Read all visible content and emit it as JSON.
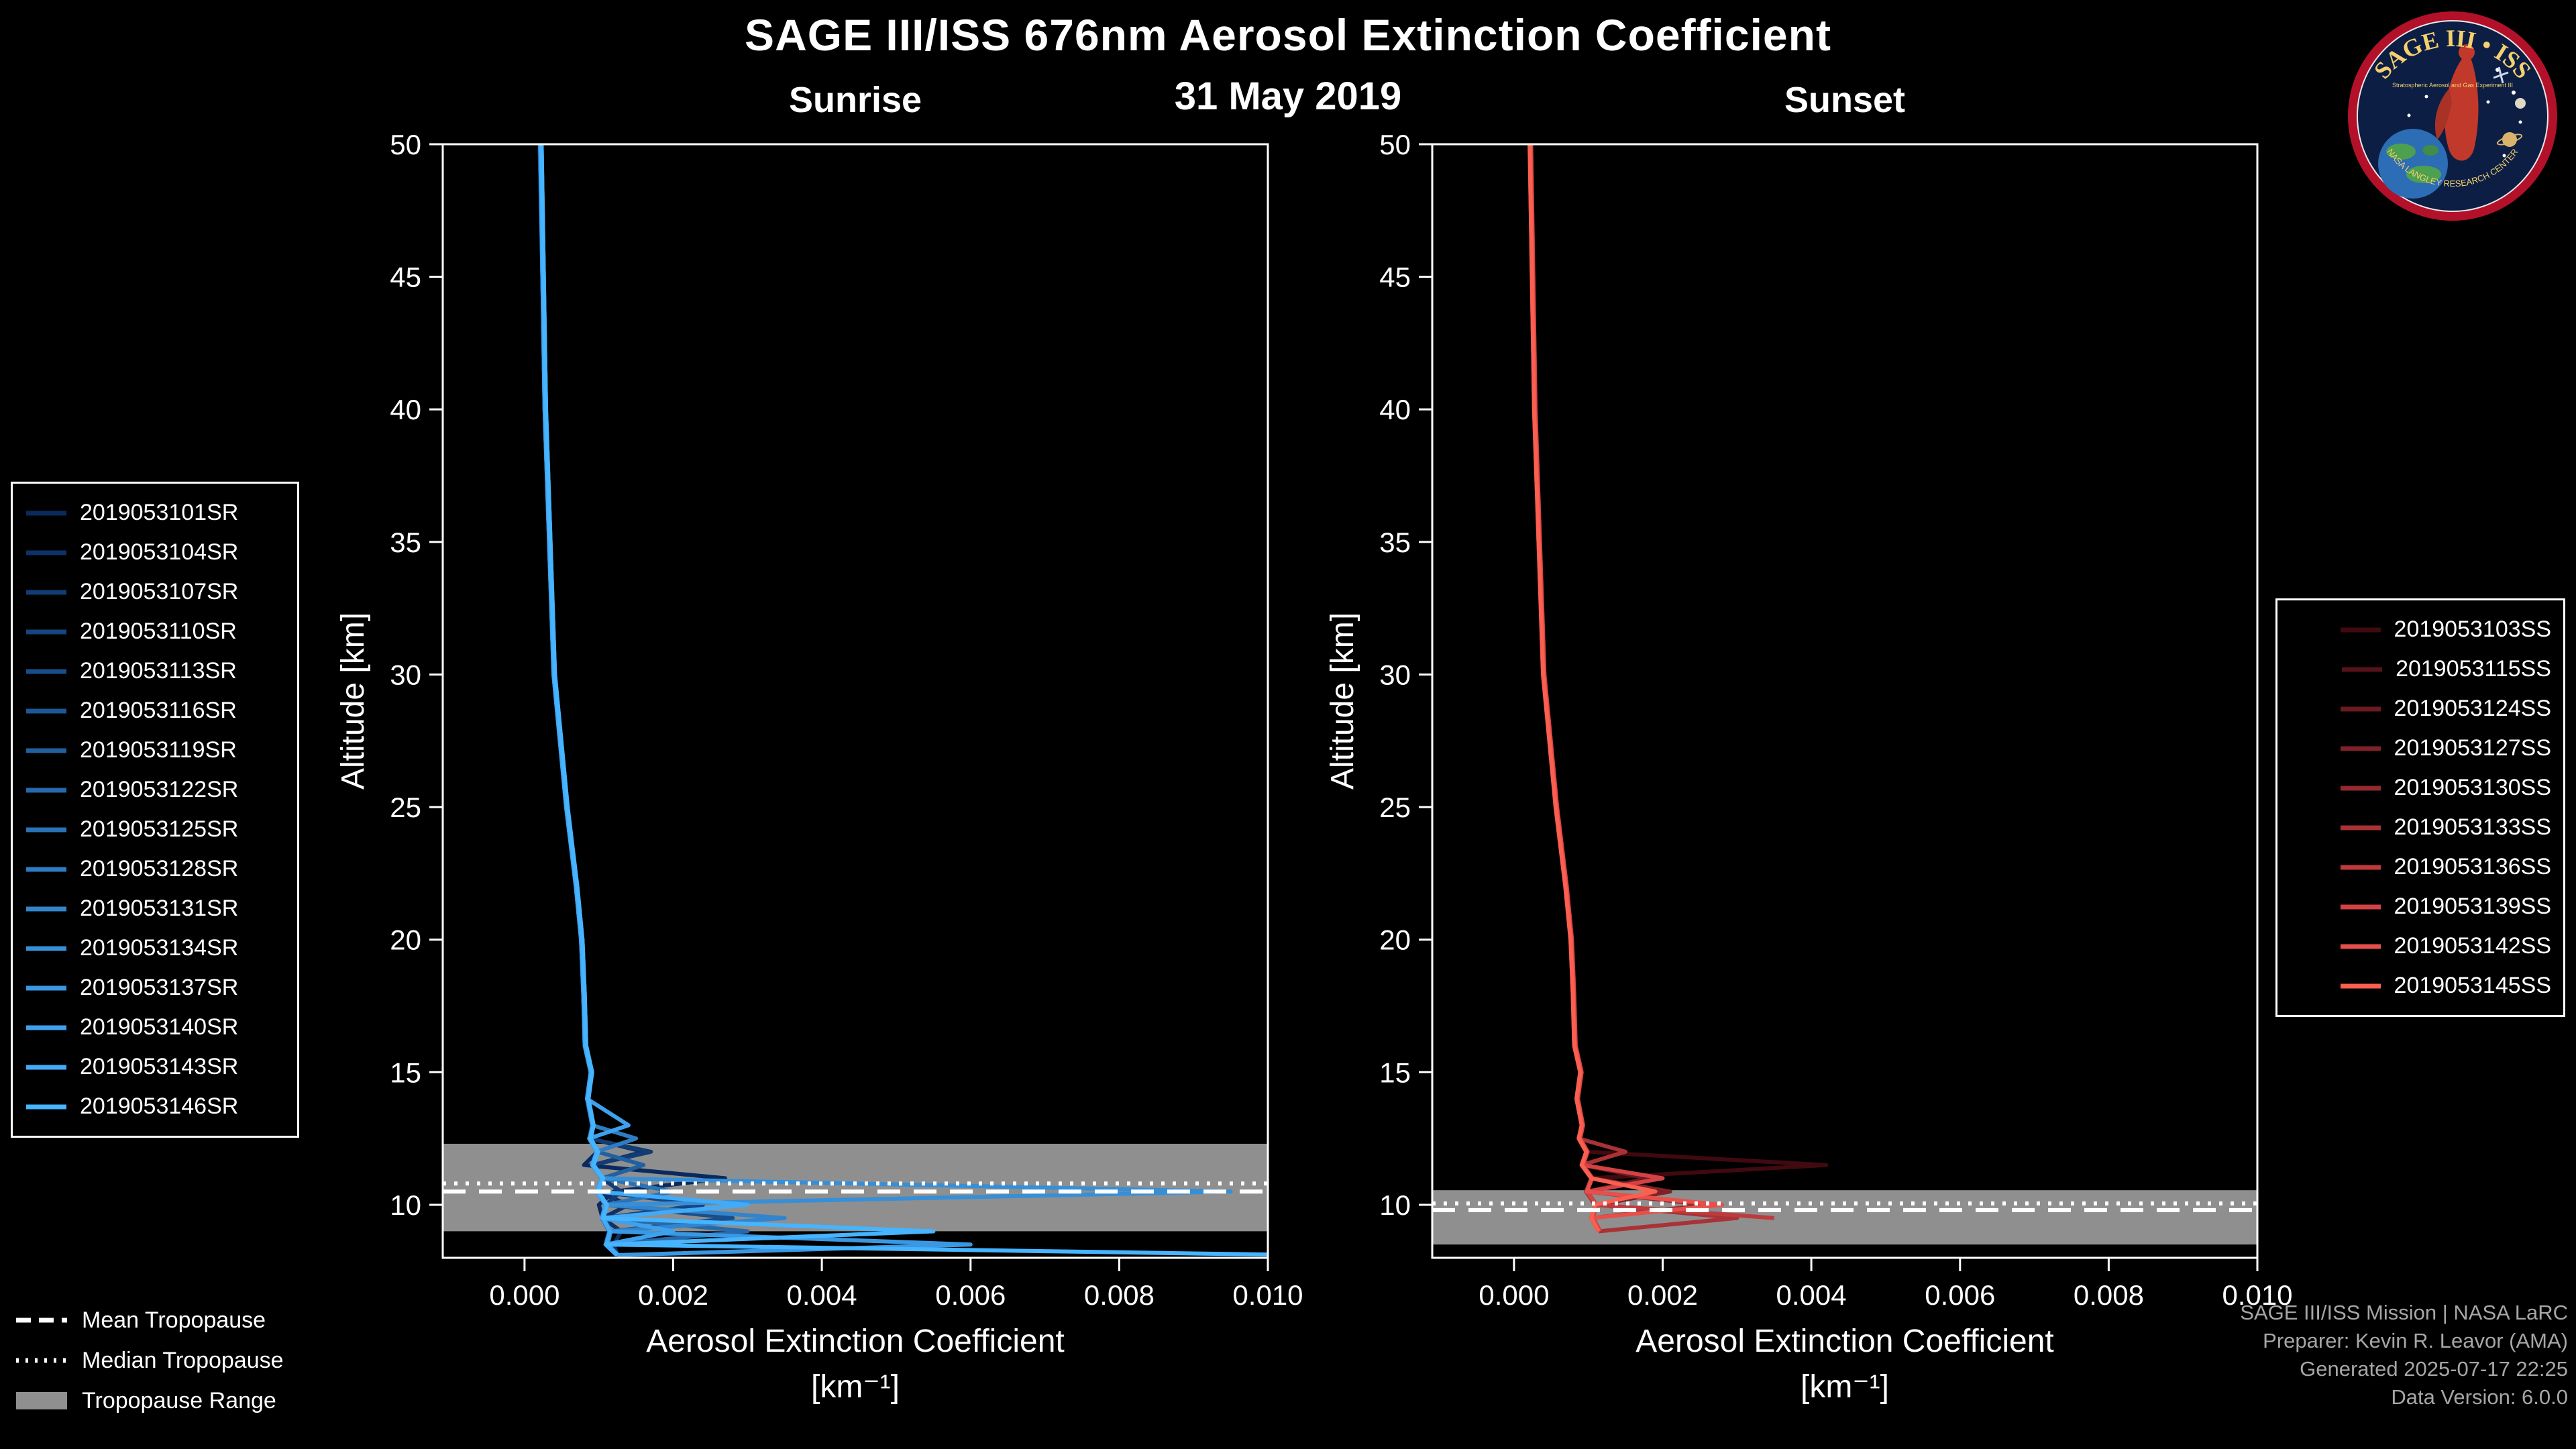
{
  "header": {
    "title": "SAGE III/ISS 676nm Aerosol Extinction Coefficient",
    "date": "31 May 2019"
  },
  "logo": {
    "top_text": "SAGE III • ISS",
    "sub_text": "Stratospheric Aerosol and Gas Experiment III",
    "bottom_text": "NASA LANGLEY RESEARCH CENTER"
  },
  "tropopause_legend": {
    "mean": "Mean Tropopause",
    "median": "Median Tropopause",
    "range": "Tropopause Range"
  },
  "credits": {
    "line1": "SAGE III/ISS Mission | NASA LaRC",
    "line2": "Preparer: Kevin R. Leavor (AMA)",
    "line3": "Generated 2025-07-17 22:25",
    "line4": "Data Version: 6.0.0"
  },
  "colors": {
    "band": "#8f8f8f",
    "tropopause_line": "#ffffff",
    "frame": "#ffffff"
  },
  "chart_data": [
    {
      "type": "line",
      "panel": "sunrise",
      "title": "Sunrise",
      "xlabel": "Aerosol Extinction Coefficient",
      "xlabel_units": "[km⁻¹]",
      "ylabel": "Altitude [km]",
      "xlim": [
        -0.0011,
        0.01
      ],
      "xticks": [
        0.0,
        0.002,
        0.004,
        0.006,
        0.008,
        0.01
      ],
      "ylim": [
        8,
        50
      ],
      "yticks": [
        10,
        15,
        20,
        25,
        30,
        35,
        40,
        45,
        50
      ],
      "legend_position": "outside-left",
      "grid": false,
      "tropopause": {
        "mean": 10.5,
        "median": 10.8,
        "range": [
          9.0,
          12.3
        ]
      },
      "altitudes": [
        50,
        40,
        30,
        25,
        22,
        20,
        18,
        16,
        15,
        14,
        13,
        12.5,
        12,
        11.5,
        11,
        10.5,
        10,
        9.5,
        9,
        8.5,
        8.1
      ],
      "series": [
        {
          "name": "2019053101SR",
          "color": "#0a2a5e",
          "values": [
            0.0002,
            0.00028,
            0.0004,
            0.00057,
            0.0007,
            0.00077,
            0.0008,
            0.00082,
            0.0009,
            0.00085,
            0.00092,
            0.00088,
            0.00098,
            0.0008,
            0.0027,
            0.0012,
            0.001,
            0.00105,
            0.00115,
            0.0011,
            0.00125
          ]
        },
        {
          "name": "2019053104SR",
          "color": "#0e3369",
          "values": [
            0.00022,
            0.00028,
            0.0004,
            0.00057,
            0.0007,
            0.00077,
            0.0008,
            0.00082,
            0.0009,
            0.00085,
            0.00092,
            0.00088,
            0.0016,
            0.00092,
            0.00105,
            0.00098,
            0.0014,
            0.00105,
            0.0013,
            0.0012,
            0.00125
          ]
        },
        {
          "name": "2019053107SR",
          "color": "#123c74",
          "values": [
            0.00021,
            0.00027,
            0.00039,
            0.00056,
            0.00069,
            0.00076,
            0.00079,
            0.00081,
            0.00089,
            0.00084,
            0.00091,
            0.00087,
            0.0017,
            0.00091,
            0.00104,
            0.0013,
            0.00109,
            0.00104,
            0.00114,
            0.00109,
            0.00124
          ]
        },
        {
          "name": "2019053110SR",
          "color": "#16457f",
          "values": [
            0.00023,
            0.00029,
            0.00041,
            0.00058,
            0.00071,
            0.00078,
            0.00081,
            0.00083,
            0.00091,
            0.00086,
            0.00093,
            0.00089,
            0.00099,
            0.00093,
            0.00106,
            0.00099,
            0.0024,
            0.00106,
            0.00116,
            0.00112,
            0.00126
          ]
        },
        {
          "name": "2019053113SR",
          "color": "#1a4e8a",
          "values": [
            0.00022,
            0.00028,
            0.0004,
            0.00057,
            0.0007,
            0.00077,
            0.0008,
            0.00082,
            0.0009,
            0.00085,
            0.00092,
            0.00088,
            0.00098,
            0.00092,
            0.00105,
            0.00098,
            0.0011,
            0.0028,
            0.00115,
            0.0011,
            0.00125
          ]
        },
        {
          "name": "2019053116SR",
          "color": "#1e5795",
          "values": [
            0.00021,
            0.00027,
            0.00039,
            0.00056,
            0.00069,
            0.00076,
            0.00079,
            0.00081,
            0.00089,
            0.00084,
            0.00091,
            0.00087,
            0.00097,
            0.00091,
            0.00104,
            0.00097,
            0.00109,
            0.00104,
            0.00114,
            0.00109,
            0.00124
          ]
        },
        {
          "name": "2019053119SR",
          "color": "#2261a0",
          "values": [
            0.00022,
            0.00028,
            0.0004,
            0.00057,
            0.0007,
            0.00077,
            0.0008,
            0.00082,
            0.0009,
            0.00085,
            0.00092,
            0.00088,
            0.00098,
            0.0016,
            0.00105,
            0.00098,
            0.0011,
            0.00105,
            0.00115,
            0.0011,
            0.00125
          ]
        },
        {
          "name": "2019053122SR",
          "color": "#266aab",
          "values": [
            0.00023,
            0.00029,
            0.00041,
            0.00058,
            0.00071,
            0.00078,
            0.00081,
            0.00083,
            0.00091,
            0.00086,
            0.00093,
            0.00089,
            0.00099,
            0.00093,
            0.00106,
            0.00099,
            0.00111,
            0.00106,
            0.003,
            0.00112,
            0.00126
          ]
        },
        {
          "name": "2019053125SR",
          "color": "#2a73b6",
          "values": [
            0.00022,
            0.00028,
            0.0004,
            0.00057,
            0.0007,
            0.00077,
            0.0008,
            0.00082,
            0.0009,
            0.00085,
            0.00092,
            0.00088,
            0.00098,
            0.00092,
            0.00105,
            0.002,
            0.0011,
            0.00105,
            0.00115,
            0.0011,
            0.00125
          ]
        },
        {
          "name": "2019053128SR",
          "color": "#2e7cc1",
          "values": [
            0.00021,
            0.00027,
            0.00039,
            0.00056,
            0.00069,
            0.00076,
            0.00079,
            0.00081,
            0.00089,
            0.00084,
            0.00091,
            0.0015,
            0.00097,
            0.00091,
            0.00104,
            0.00097,
            0.00109,
            0.00104,
            0.00114,
            0.00109,
            0.00124
          ]
        },
        {
          "name": "2019053131SR",
          "color": "#3285cc",
          "values": [
            0.00022,
            0.00028,
            0.0004,
            0.00057,
            0.0007,
            0.00077,
            0.0008,
            0.00082,
            0.0009,
            0.00085,
            0.00092,
            0.00088,
            0.00098,
            0.00092,
            0.00105,
            0.00098,
            0.0011,
            0.0035,
            0.00115,
            0.0011,
            0.00125
          ]
        },
        {
          "name": "2019053134SR",
          "color": "#368fd7",
          "values": [
            0.00023,
            0.00029,
            0.00041,
            0.00058,
            0.00071,
            0.00078,
            0.00081,
            0.00083,
            0.00091,
            0.00086,
            0.00093,
            0.00089,
            0.00099,
            0.00093,
            0.00106,
            0.0095,
            0.00111,
            0.00106,
            0.00116,
            0.00112,
            0.00126
          ]
        },
        {
          "name": "2019053137SR",
          "color": "#3a98e2",
          "values": [
            0.00022,
            0.00028,
            0.0004,
            0.00057,
            0.0007,
            0.00077,
            0.0008,
            0.00082,
            0.0009,
            0.00085,
            0.00092,
            0.00088,
            0.00098,
            0.00092,
            0.00105,
            0.00098,
            0.0011,
            0.00105,
            0.00115,
            0.006,
            0.00125
          ]
        },
        {
          "name": "2019053140SR",
          "color": "#3ea1ed",
          "values": [
            0.00021,
            0.00027,
            0.00039,
            0.00056,
            0.00069,
            0.00076,
            0.00079,
            0.00081,
            0.00089,
            0.00084,
            0.0014,
            0.00087,
            0.00097,
            0.00091,
            0.00104,
            0.00097,
            0.00109,
            0.00104,
            0.002,
            0.00109,
            0.00124
          ]
        },
        {
          "name": "2019053143SR",
          "color": "#42abf8",
          "values": [
            0.00022,
            0.00028,
            0.0004,
            0.00057,
            0.0007,
            0.00077,
            0.0008,
            0.00082,
            0.0009,
            0.00085,
            0.00092,
            0.00088,
            0.00098,
            0.00092,
            0.00105,
            0.00098,
            0.003,
            0.00105,
            0.00115,
            0.0011,
            0.00125
          ]
        },
        {
          "name": "2019053146SR",
          "color": "#46b4ff",
          "values": [
            0.00023,
            0.00029,
            0.00041,
            0.00058,
            0.00071,
            0.00078,
            0.00081,
            0.00083,
            0.00091,
            0.00086,
            0.00093,
            0.00089,
            0.00099,
            0.00093,
            0.00106,
            0.00099,
            0.00111,
            0.00106,
            0.0055,
            0.00112,
            0.0105
          ]
        }
      ]
    },
    {
      "type": "line",
      "panel": "sunset",
      "title": "Sunset",
      "xlabel": "Aerosol Extinction Coefficient",
      "xlabel_units": "[km⁻¹]",
      "ylabel": "Altitude [km]",
      "xlim": [
        -0.0011,
        0.01
      ],
      "xticks": [
        0.0,
        0.002,
        0.004,
        0.006,
        0.008,
        0.01
      ],
      "ylim": [
        8,
        50
      ],
      "yticks": [
        10,
        15,
        20,
        25,
        30,
        35,
        40,
        45,
        50
      ],
      "legend_position": "outside-right",
      "grid": false,
      "tropopause": {
        "mean": 9.8,
        "median": 10.05,
        "range": [
          8.5,
          10.55
        ]
      },
      "altitudes": [
        50,
        40,
        30,
        25,
        22,
        20,
        18,
        16,
        15,
        14,
        13,
        12.5,
        12,
        11.5,
        11,
        10.5,
        10,
        9.5,
        9,
        8.5,
        8.1
      ],
      "series": [
        {
          "name": "2019053103SS",
          "color": "#400a10",
          "values": [
            0.00022,
            0.00028,
            0.0004,
            0.00057,
            0.0007,
            0.00077,
            0.0008,
            0.00082,
            0.0009,
            0.00085,
            0.00092,
            0.00088,
            0.00098,
            0.0042,
            0.00105,
            0.00098,
            0.0011,
            null,
            null,
            null,
            null
          ]
        },
        {
          "name": "2019053115SS",
          "color": "#551218",
          "values": [
            0.00021,
            0.00027,
            0.00039,
            0.00056,
            0.00069,
            0.00076,
            0.00079,
            0.00081,
            0.00089,
            0.00084,
            0.00091,
            0.00087,
            0.00097,
            0.00091,
            0.00104,
            0.00097,
            0.00109,
            0.00104,
            0.00114,
            null,
            null
          ]
        },
        {
          "name": "2019053124SS",
          "color": "#6a1a20",
          "values": [
            0.00022,
            0.00028,
            0.0004,
            0.00057,
            0.0007,
            0.00077,
            0.0008,
            0.00082,
            0.0009,
            0.00085,
            0.00092,
            0.00088,
            0.00098,
            0.00092,
            0.0018,
            0.00098,
            0.0011,
            0.00105,
            null,
            null,
            null
          ]
        },
        {
          "name": "2019053127SS",
          "color": "#7f2228",
          "values": [
            0.00023,
            0.00029,
            0.00041,
            0.00058,
            0.00071,
            0.00078,
            0.00081,
            0.00083,
            0.00091,
            0.00086,
            0.00093,
            0.00089,
            0.00099,
            0.00093,
            0.00106,
            0.0021,
            0.00111,
            0.00106,
            0.00116,
            null,
            null
          ]
        },
        {
          "name": "2019053130SS",
          "color": "#942a2f",
          "values": [
            0.00022,
            0.00028,
            0.0004,
            0.00057,
            0.0007,
            0.00077,
            0.0008,
            0.00082,
            0.0009,
            0.00085,
            0.00092,
            0.00088,
            0.00098,
            0.00092,
            0.00105,
            0.00098,
            0.0026,
            0.00105,
            null,
            null,
            null
          ]
        },
        {
          "name": "2019053133SS",
          "color": "#a93236",
          "values": [
            0.00021,
            0.00027,
            0.00039,
            0.00056,
            0.00069,
            0.00076,
            0.00079,
            0.00081,
            0.00089,
            0.00084,
            0.00091,
            0.00087,
            0.0015,
            0.00091,
            0.00104,
            0.00097,
            0.00109,
            0.003,
            0.00114,
            null,
            null
          ]
        },
        {
          "name": "2019053136SS",
          "color": "#be3a3d",
          "values": [
            0.00022,
            0.00028,
            0.0004,
            0.00057,
            0.0007,
            0.00077,
            0.0008,
            0.00082,
            0.0009,
            0.00085,
            0.00092,
            0.00088,
            0.00098,
            0.00092,
            0.00105,
            0.00098,
            0.0011,
            0.0035,
            null,
            null,
            null
          ]
        },
        {
          "name": "2019053139SS",
          "color": "#d34244",
          "values": [
            0.00023,
            0.00029,
            0.00041,
            0.00058,
            0.00071,
            0.00078,
            0.00081,
            0.00083,
            0.00091,
            0.00086,
            0.00093,
            0.00089,
            0.00099,
            0.00093,
            0.002,
            0.00099,
            0.00111,
            0.00106,
            0.00116,
            null,
            null
          ]
        },
        {
          "name": "2019053142SS",
          "color": "#e84f4a",
          "values": [
            0.00022,
            0.00028,
            0.0004,
            0.00057,
            0.0007,
            0.00077,
            0.0008,
            0.00082,
            0.0009,
            0.00085,
            0.00092,
            0.00088,
            0.00098,
            0.00092,
            0.00105,
            0.00098,
            0.0028,
            0.00105,
            null,
            null,
            null
          ]
        },
        {
          "name": "2019053145SS",
          "color": "#fa5f50",
          "values": [
            0.00021,
            0.00027,
            0.00039,
            0.00056,
            0.00069,
            0.00076,
            0.00079,
            0.00081,
            0.00089,
            0.00084,
            0.00091,
            0.00087,
            0.00097,
            0.00091,
            0.00104,
            0.0019,
            0.00109,
            0.00104,
            0.00114,
            null,
            null
          ]
        }
      ]
    }
  ]
}
